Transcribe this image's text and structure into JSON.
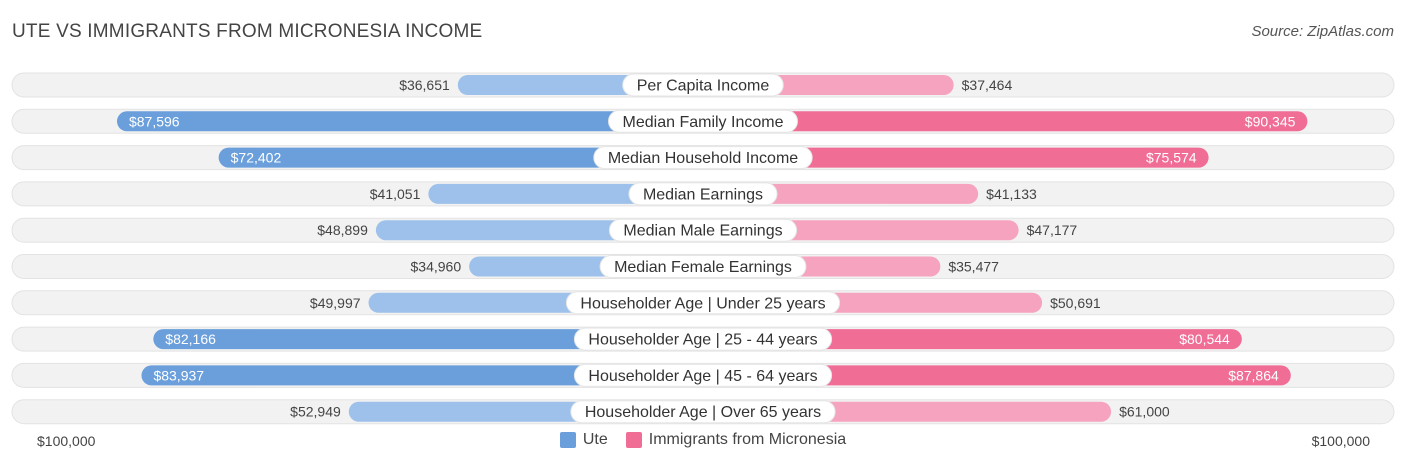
{
  "title": "UTE VS IMMIGRANTS FROM MICRONESIA INCOME",
  "source": "Source: ZipAtlas.com",
  "colors": {
    "left_strong": "#6a9fdc",
    "left_light": "#9dc1ea",
    "right_strong": "#f06d96",
    "right_light": "#f5a3bf",
    "track": "#f2f2f2"
  },
  "chart_data": {
    "type": "bar",
    "orientation": "horizontal-diverging",
    "title": "UTE VS IMMIGRANTS FROM MICRONESIA INCOME",
    "categories": [
      "Per Capita Income",
      "Median Family Income",
      "Median Household Income",
      "Median Earnings",
      "Median Male Earnings",
      "Median Female Earnings",
      "Householder Age | Under 25 years",
      "Householder Age | 25 - 44 years",
      "Householder Age | 45 - 64 years",
      "Householder Age | Over 65 years"
    ],
    "series": [
      {
        "name": "Ute",
        "side": "left",
        "values": [
          36651,
          87596,
          72402,
          41051,
          48899,
          34960,
          49997,
          82166,
          83937,
          52949
        ],
        "labels": [
          "$36,651",
          "$87,596",
          "$72,402",
          "$41,051",
          "$48,899",
          "$34,960",
          "$49,997",
          "$82,166",
          "$83,937",
          "$52,949"
        ]
      },
      {
        "name": "Immigrants from Micronesia",
        "side": "right",
        "values": [
          37464,
          90345,
          75574,
          41133,
          47177,
          35477,
          50691,
          80544,
          87864,
          61000
        ],
        "labels": [
          "$37,464",
          "$90,345",
          "$75,574",
          "$41,133",
          "$47,177",
          "$35,477",
          "$50,691",
          "$80,544",
          "$87,864",
          "$61,000"
        ]
      }
    ],
    "xlim": [
      0,
      100000
    ],
    "axis_labels": {
      "left": "$100,000",
      "right": "$100,000"
    },
    "legend": {
      "position": "bottom-center",
      "entries": [
        "Ute",
        "Immigrants from Micronesia"
      ]
    }
  }
}
